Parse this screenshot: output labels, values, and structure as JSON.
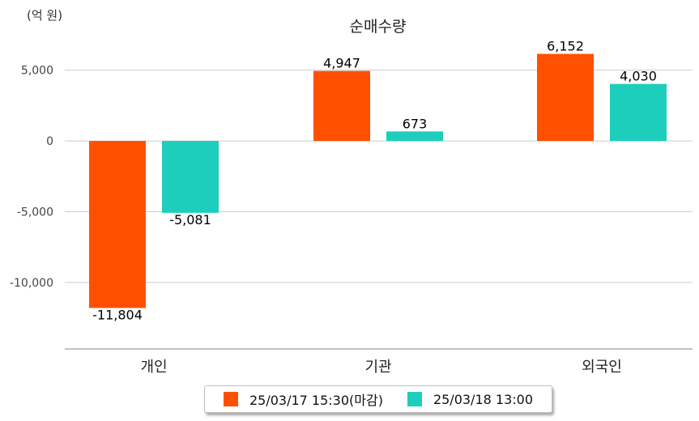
{
  "chart_data": {
    "type": "bar",
    "title": "순매수량",
    "unit_label": "(억 원)",
    "categories": [
      "개인",
      "기관",
      "외국인"
    ],
    "series": [
      {
        "name": "25/03/17 15:30(마감)",
        "values": [
          -11804,
          4947,
          6152
        ],
        "labels": [
          "-11,804",
          "4,947",
          "6,152"
        ],
        "color": "#ff5000"
      },
      {
        "name": "25/03/18 13:00",
        "values": [
          -5081,
          673,
          4030
        ],
        "labels": [
          "-5,081",
          "673",
          "4,030"
        ],
        "color": "#1ecebc"
      }
    ],
    "yticks": [
      5000,
      0,
      -5000,
      -10000
    ],
    "ytick_labels": [
      "5,000",
      "0",
      "-5,000",
      "-10,000"
    ],
    "ylim": [
      -14700,
      7900
    ],
    "grid": true,
    "legend_position": "bottom"
  }
}
